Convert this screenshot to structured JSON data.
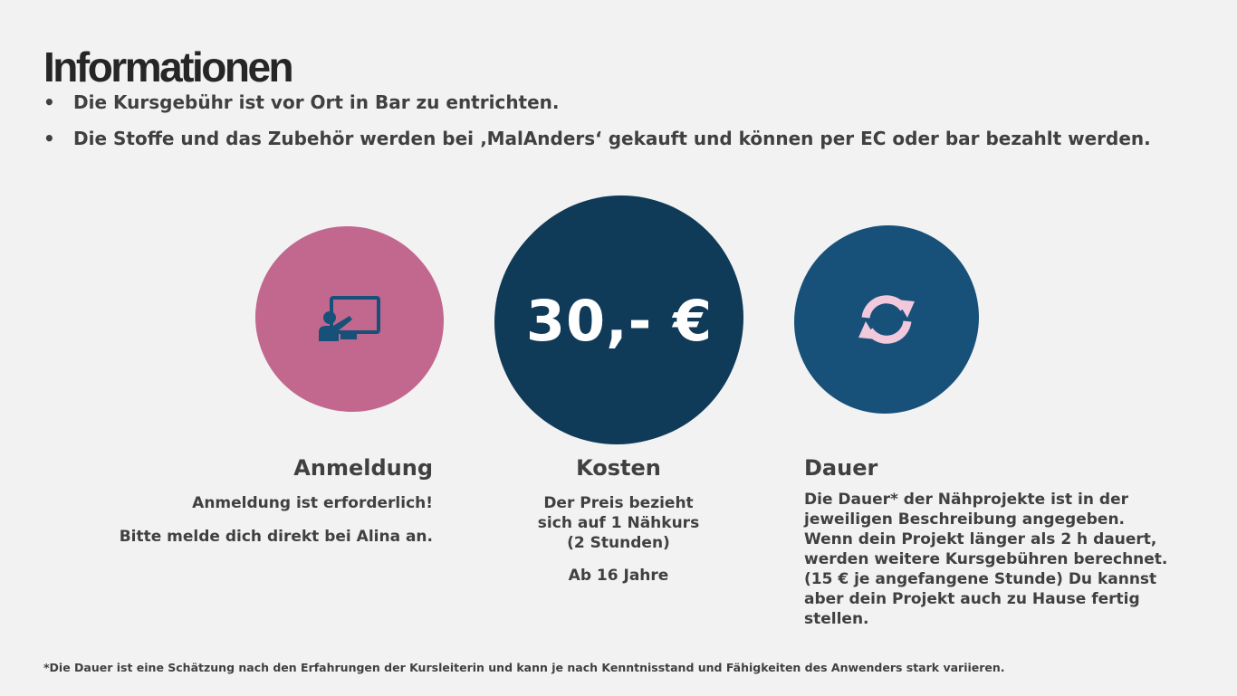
{
  "title": "Informationen",
  "bullets": [
    "Die Kursgebühr ist vor Ort in Bar zu entrichten.",
    "Die Stoffe und das Zubehör werden bei ‚MalAnders‘ gekauft und können per EC oder bar bezahlt werden."
  ],
  "colors": {
    "pink": "#c2678e",
    "navy": "#0f3a58",
    "blue": "#17517a",
    "icon_pink": "#f2c8dc",
    "icon_blue": "#17517a"
  },
  "anmeldung": {
    "icon": "presentation-board-icon",
    "heading": "Anmeldung",
    "line1": "Anmeldung ist erforderlich!",
    "line2": "Bitte melde dich direkt bei Alina an."
  },
  "kosten": {
    "price": "30,- €",
    "heading": "Kosten",
    "line1": "Der Preis bezieht",
    "line2": "sich auf 1 Nähkurs",
    "line3": "(2 Stunden)",
    "line4": "Ab 16 Jahre"
  },
  "dauer": {
    "icon": "refresh-arrows-icon",
    "heading": "Dauer",
    "lines": [
      "Die Dauer* der Nähprojekte ist in der",
      "jeweiligen Beschreibung angegeben.",
      "Wenn dein Projekt länger als 2 h dauert,",
      "werden weitere Kursgebühren berechnet.",
      "(15 € je angefangene Stunde) Du kannst",
      "aber dein Projekt auch zu Hause fertig",
      "stellen."
    ]
  },
  "footnote": "*Die Dauer ist eine Schätzung nach den Erfahrungen der Kursleiterin und kann je nach Kenntnisstand und Fähigkeiten des Anwenders stark variieren."
}
